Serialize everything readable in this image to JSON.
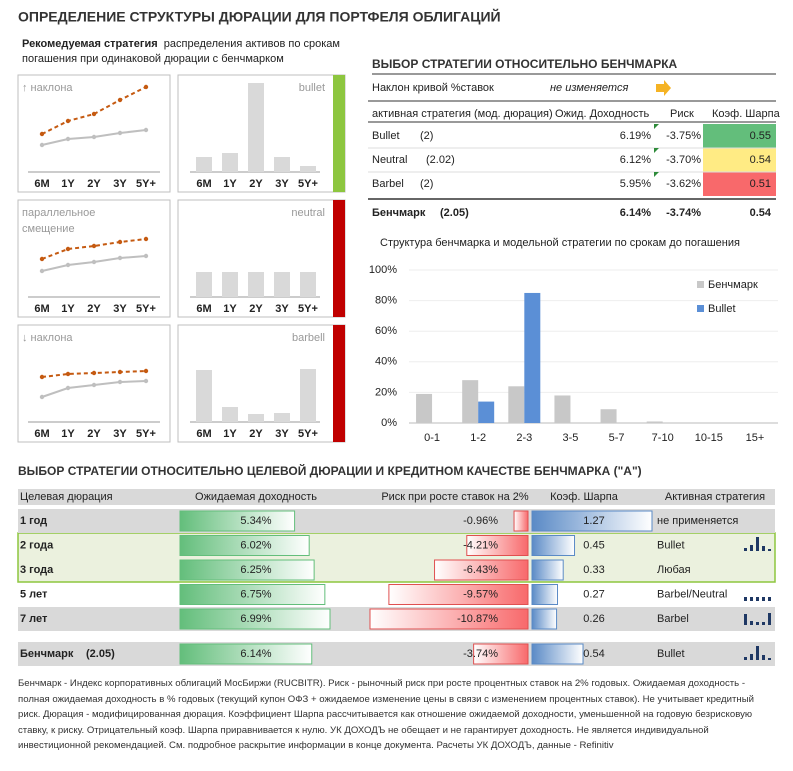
{
  "title": "ОПРЕДЕЛЕНИЕ СТРУКТУРЫ ДЮРАЦИИ ДЛЯ ПОРТФЕЛЯ ОБЛИГАЦИЙ",
  "recommended": {
    "bold": "Рекомедуемая стратегия",
    "text": "распределения активов по срокам погашения при одинаковой дюрации с бенчмарком"
  },
  "scenarios": {
    "categories": [
      "6M",
      "1Y",
      "2Y",
      "3Y",
      "5Y+"
    ],
    "ylim": [
      0,
      100
    ],
    "items": [
      {
        "label": [
          "↑ наклона"
        ],
        "strategy": "bullet",
        "stripe": "#8dc63f",
        "line_dashed": [
          38,
          51,
          58,
          72,
          85
        ],
        "line_solid": [
          27,
          33,
          35,
          39,
          42
        ],
        "bars": [
          15,
          19,
          89,
          15,
          6
        ]
      },
      {
        "label": [
          "параллельное",
          "смещение"
        ],
        "strategy": "neutral",
        "stripe": "#c00000",
        "line_dashed": [
          38,
          48,
          51,
          55,
          58
        ],
        "line_solid": [
          26,
          32,
          35,
          39,
          41
        ],
        "bars": [
          25,
          25,
          25,
          25,
          25
        ]
      },
      {
        "label": [
          "↓ наклона"
        ],
        "strategy": "barbell",
        "stripe": "#c00000",
        "line_dashed": [
          45,
          48,
          49,
          50,
          51
        ],
        "line_solid": [
          25,
          34,
          37,
          40,
          41
        ],
        "bars": [
          52,
          15,
          8,
          9,
          53
        ]
      }
    ]
  },
  "benchmark_table": {
    "title": "ВЫБОР СТРАТЕГИИ ОТНОСИТЕЛЬНО БЕНЧМАРКА",
    "slope_label": "Наклон кривой %ставок",
    "slope_value": "не изменяется",
    "headers": [
      "активная стратегия (мод. дюрация)",
      "Ожид. Доходность",
      "Риск",
      "Коэф. Шарпа"
    ],
    "rows": [
      {
        "name": "Bullet",
        "duration": "(2)",
        "yield": "6.19%",
        "risk": "-3.75%",
        "sharpe": "0.55",
        "color": "#63be7b"
      },
      {
        "name": "Neutral",
        "duration": "(2.02)",
        "yield": "6.12%",
        "risk": "-3.70%",
        "sharpe": "0.54",
        "color": "#ffeb84"
      },
      {
        "name": "Barbel",
        "duration": "(2)",
        "yield": "5.95%",
        "risk": "-3.62%",
        "sharpe": "0.51",
        "color": "#f8696b"
      }
    ],
    "benchmark": {
      "name": "Бенчмарк",
      "duration": "(2.05)",
      "yield": "6.14%",
      "risk": "-3.74%",
      "sharpe": "0.54"
    }
  },
  "chart_data": {
    "type": "bar",
    "title": "Структура бенчмарка и модельной стратегии по срокам до погашения",
    "categories": [
      "0-1",
      "1-2",
      "2-3",
      "3-5",
      "5-7",
      "7-10",
      "10-15",
      "15+"
    ],
    "series": [
      {
        "name": "Бенчмарк",
        "color": "#c8c8c8",
        "values": [
          19,
          28,
          24,
          18,
          9,
          1,
          0,
          0
        ]
      },
      {
        "name": "Bullet",
        "color": "#5b8fd6",
        "values": [
          0,
          14,
          85,
          0,
          0,
          0,
          0,
          0
        ]
      }
    ],
    "ylim": [
      0,
      100
    ],
    "yticks": [
      {
        "value": 0,
        "label": "0%"
      },
      {
        "value": 20,
        "label": "20%"
      },
      {
        "value": 40,
        "label": "40%"
      },
      {
        "value": 60,
        "label": "60%"
      },
      {
        "value": 80,
        "label": "80%"
      },
      {
        "value": 100,
        "label": "100%"
      }
    ],
    "legend": "top-right"
  },
  "target_table": {
    "title": "ВЫБОР СТРАТЕГИИ ОТНОСИТЕЛЬНО ЦЕЛЕВОЙ ДЮРАЦИИ И КРЕДИТНОМ КАЧЕСТВЕ БЕНЧМАРКА (\"А\")",
    "headers": [
      "Целевая дюрация",
      "Ожидаемая доходность",
      "Риск при росте ставок на 2%",
      "Коэф. Шарпа",
      "Активная стратегия"
    ],
    "rows": [
      {
        "label": "1 год",
        "yield": 5.34,
        "yield_label": "5.34%",
        "risk": -0.96,
        "risk_label": "-0.96%",
        "sharpe": 1.27,
        "strategy": "не применяется"
      },
      {
        "label": "2 года",
        "yield": 6.02,
        "yield_label": "6.02%",
        "risk": -4.21,
        "risk_label": "-4.21%",
        "sharpe": 0.45,
        "strategy": "Bullet"
      },
      {
        "label": "3 года",
        "yield": 6.25,
        "yield_label": "6.25%",
        "risk": -6.43,
        "risk_label": "-6.43%",
        "sharpe": 0.33,
        "strategy": "Любая"
      },
      {
        "label": "5 лет",
        "yield": 6.75,
        "yield_label": "6.75%",
        "risk": -9.57,
        "risk_label": "-9.57%",
        "sharpe": 0.27,
        "strategy": "Barbel/Neutral"
      },
      {
        "label": "7 лет",
        "yield": 6.99,
        "yield_label": "6.99%",
        "risk": -10.87,
        "risk_label": "-10.87%",
        "sharpe": 0.26,
        "strategy": "Barbel"
      }
    ],
    "benchmark": {
      "label": "Бенчмарк",
      "duration": "(2.05)",
      "yield": 6.14,
      "yield_label": "6.14%",
      "risk": -3.74,
      "risk_label": "-3.74%",
      "sharpe": 0.54,
      "strategy": "Bullet"
    }
  },
  "footer": "Бенчмарк - Индекс корпоративных облигаций МосБиржи (RUCBITR). Риск - рыночный риск при росте процентных ставок на 2% годовых. Ожидаемая доходность - полная ожидаемая доходность в % годовых (текущий купон ОФЗ + ожидаемое изменение цены в связи с изменением процентных ставок). Не учитывает кредитный риск. Дюрация - модифицированная дюрация. Коэффициент Шарпа рассчитывается как отношение ожидаемой доходности, уменьшенной на годовую безрисковую ставку, к риску. Отрицательный коэф. Шарпа приравнивается к нулю. УК ДОХОДЪ не обещает и не гарантирует доходность. Не является индивидуальной инвестиционной рекомендацией. См. подробное раскрытие информации в конце документа. Расчеты УК ДОХОДЪ, данные - Refinitiv"
}
